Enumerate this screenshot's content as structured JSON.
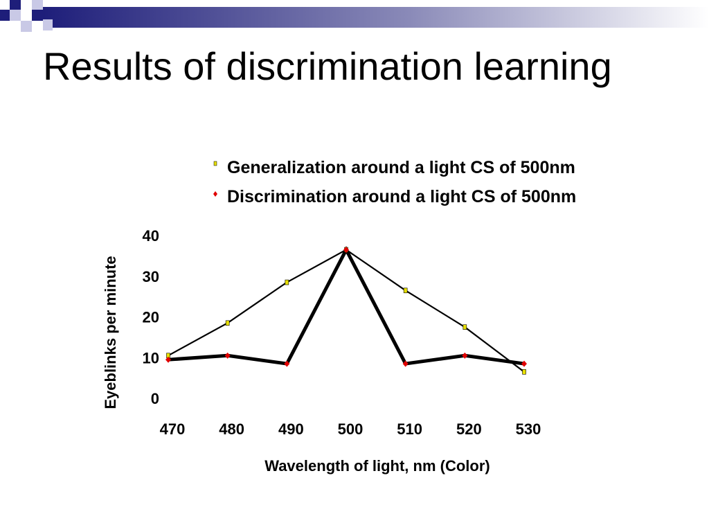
{
  "slide": {
    "title": "Results of discrimination learning"
  },
  "colors": {
    "title_bar_navy": "#1e1e7a",
    "decor_square_light": "#c9c9e6",
    "generalization_marker": "#e8e000",
    "discrimination_marker": "#e00000",
    "line": "#000000"
  },
  "chart_data": {
    "type": "line",
    "title": "",
    "xlabel": "Wavelength of light, nm (Color)",
    "ylabel": "Eyeblinks per minute",
    "x": [
      470,
      480,
      490,
      500,
      510,
      520,
      530
    ],
    "xlim": [
      470,
      530
    ],
    "ylim": [
      0,
      40
    ],
    "yticks": [
      0,
      10,
      20,
      30,
      40
    ],
    "grid": false,
    "legend_position": "top-right",
    "series": [
      {
        "name": "Generalization around a light CS of 500nm",
        "values": [
          10.5,
          18.5,
          28.5,
          36.5,
          26.5,
          17.5,
          6.5
        ],
        "color": "#000000",
        "marker_color": "#e8e000",
        "line_style": "thin"
      },
      {
        "name": "Discrimination around a light CS of 500nm",
        "values": [
          9.5,
          10.5,
          8.5,
          36.5,
          8.5,
          10.5,
          8.5
        ],
        "color": "#000000",
        "marker_color": "#e00000",
        "line_style": "thick"
      }
    ]
  }
}
